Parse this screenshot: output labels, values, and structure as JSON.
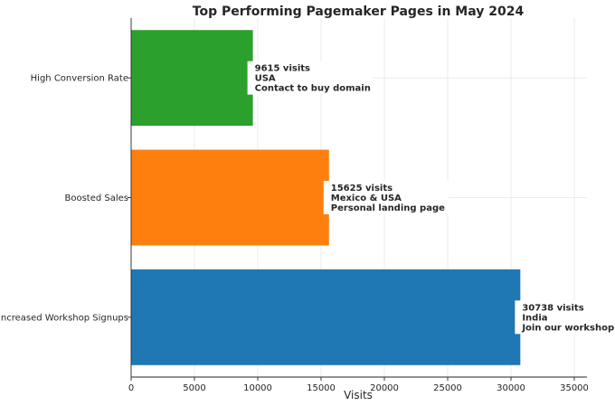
{
  "chart_data": {
    "type": "bar",
    "orientation": "horizontal",
    "title": "Top Performing Pagemaker Pages in May 2024",
    "xlabel": "Visits",
    "ylabel": "",
    "xlim": [
      0,
      36000
    ],
    "x_ticks": [
      0,
      5000,
      10000,
      15000,
      20000,
      25000,
      30000,
      35000
    ],
    "grid": true,
    "categories": [
      "Increased Workshop Signups",
      "Boosted Sales",
      "High Conversion Rate"
    ],
    "values": [
      30738,
      15625,
      9615
    ],
    "colors": [
      "#1f77b4",
      "#ff7f0e",
      "#2ca02c"
    ],
    "annotations": [
      [
        "30738 visits",
        "India",
        "Join our workshop"
      ],
      [
        "15625 visits",
        "Mexico & USA",
        "Personal landing page"
      ],
      [
        "9615 visits",
        "USA",
        "Contact to buy domain"
      ]
    ]
  }
}
